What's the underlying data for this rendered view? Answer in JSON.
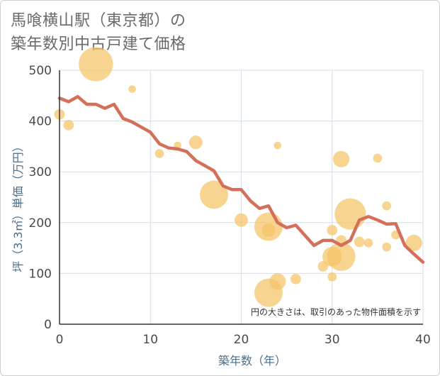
{
  "title_lines": [
    "馬喰横山駅（東京都）の",
    "築年数別中古戸建て価格"
  ],
  "chart_data": {
    "type": "scatter",
    "xlabel": "築年数（年）",
    "ylabel": "坪（3.3㎡）単価（万円）",
    "xlim": [
      0,
      40
    ],
    "ylim": [
      0,
      500
    ],
    "xticks": [
      "0",
      "10",
      "20",
      "30",
      "40"
    ],
    "yticks": [
      "0",
      "100",
      "200",
      "300",
      "400",
      "500"
    ],
    "grid": true,
    "note": "円の大きさは、取引のあった物件面積を示す",
    "bubble_color": "#f5c466",
    "line_color": "#d4705a",
    "bubbles": [
      {
        "x": 0,
        "y": 413,
        "s": 2
      },
      {
        "x": 1,
        "y": 392,
        "s": 2
      },
      {
        "x": 4,
        "y": 512,
        "s": 10
      },
      {
        "x": 8,
        "y": 463,
        "s": 1
      },
      {
        "x": 11,
        "y": 336,
        "s": 1.5
      },
      {
        "x": 13,
        "y": 352,
        "s": 1
      },
      {
        "x": 15,
        "y": 358,
        "s": 3
      },
      {
        "x": 17,
        "y": 255,
        "s": 8
      },
      {
        "x": 20,
        "y": 205,
        "s": 3
      },
      {
        "x": 23,
        "y": 192,
        "s": 8
      },
      {
        "x": 23,
        "y": 185,
        "s": 3
      },
      {
        "x": 23,
        "y": 62,
        "s": 8
      },
      {
        "x": 24,
        "y": 84,
        "s": 4
      },
      {
        "x": 24,
        "y": 352,
        "s": 1
      },
      {
        "x": 26,
        "y": 89,
        "s": 2
      },
      {
        "x": 29,
        "y": 114,
        "s": 2
      },
      {
        "x": 30,
        "y": 185,
        "s": 2
      },
      {
        "x": 30,
        "y": 133,
        "s": 5
      },
      {
        "x": 30,
        "y": 93,
        "s": 1.5
      },
      {
        "x": 31,
        "y": 325,
        "s": 4
      },
      {
        "x": 31,
        "y": 165,
        "s": 2
      },
      {
        "x": 31,
        "y": 133,
        "s": 8
      },
      {
        "x": 32,
        "y": 217,
        "s": 9
      },
      {
        "x": 33,
        "y": 162,
        "s": 2
      },
      {
        "x": 34,
        "y": 160,
        "s": 1.5
      },
      {
        "x": 35,
        "y": 327,
        "s": 1.5
      },
      {
        "x": 36,
        "y": 233,
        "s": 1.5
      },
      {
        "x": 36,
        "y": 152,
        "s": 1.5
      },
      {
        "x": 37,
        "y": 176,
        "s": 1.5
      },
      {
        "x": 39,
        "y": 160,
        "s": 4
      }
    ],
    "line": {
      "x": [
        0,
        1,
        2,
        3,
        4,
        5,
        6,
        7,
        8,
        9,
        10,
        11,
        12,
        13,
        14,
        15,
        16,
        17,
        18,
        19,
        20,
        21,
        22,
        23,
        24,
        25,
        26,
        27,
        28,
        29,
        30,
        31,
        32,
        33,
        34,
        35,
        36,
        37,
        38,
        39,
        40
      ],
      "y": [
        445,
        438,
        448,
        433,
        433,
        425,
        433,
        405,
        398,
        388,
        378,
        355,
        347,
        345,
        340,
        322,
        312,
        302,
        272,
        265,
        265,
        243,
        228,
        233,
        200,
        190,
        195,
        175,
        155,
        165,
        165,
        155,
        165,
        205,
        212,
        205,
        197,
        198,
        155,
        138,
        122
      ]
    }
  }
}
